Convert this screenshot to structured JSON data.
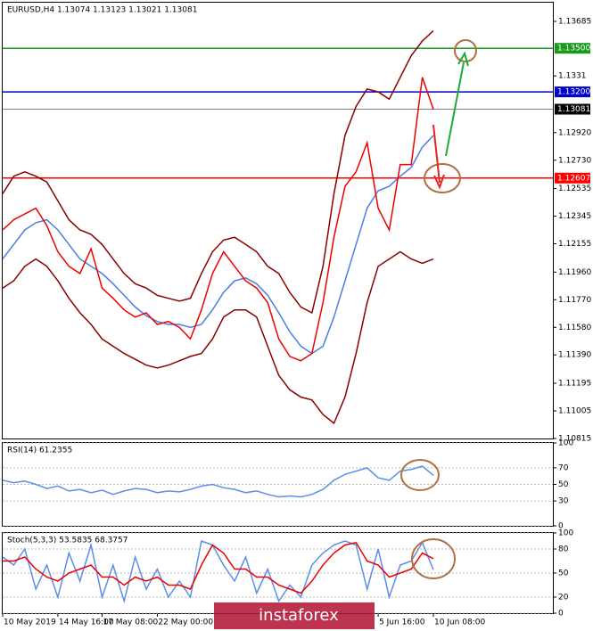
{
  "chart_data": [
    {
      "type": "line",
      "title": "EURUSD,H4  1.13074 1.13123 1.13021 1.13081",
      "watermark": "instaforex",
      "ylim": [
        1.10815,
        1.13814
      ],
      "yticks": [
        1.13685,
        1.1331,
        {
          "value": 1.1292,
          "label": "1.12920"
        },
        {
          "value": 1.1273,
          "label": "1.12730"
        },
        1.12535,
        1.12345,
        1.12155,
        {
          "value": 1.1196,
          "label": "1.11960"
        },
        {
          "value": 1.1177,
          "label": "1.11770"
        },
        {
          "value": 1.1158,
          "label": "1.11580"
        },
        {
          "value": 1.1139,
          "label": "1.11390"
        },
        1.11195,
        1.11005,
        1.10815
      ],
      "levels": [
        {
          "value": 1.135,
          "label": "1.13500",
          "color": "#1a9a1a"
        },
        {
          "value": 1.132,
          "label": "1.13200",
          "color": "#0000cc"
        },
        {
          "value": 1.13081,
          "label": "1.13081",
          "color": "#000000"
        },
        {
          "value": 1.12607,
          "label": "1.12607",
          "color": "#ff0000"
        }
      ],
      "categories": [
        "10 May 2019",
        null,
        null,
        null,
        null,
        "14 May 16:00",
        null,
        null,
        null,
        "17 May 08:00",
        null,
        null,
        null,
        null,
        "22 May 00:00",
        null,
        null,
        null,
        null,
        null,
        null,
        null,
        null,
        null,
        null,
        null,
        null,
        null,
        null,
        null,
        null,
        null,
        null,
        null,
        "5 Jun 16:00",
        null,
        null,
        null,
        null,
        "10 Jun 08:00"
      ],
      "series": [
        {
          "color": "#8b0000",
          "values": [
            1.125,
            1.1262,
            1.1265,
            1.1262,
            1.1258,
            1.1245,
            1.1232,
            1.1225,
            1.1222,
            1.1215,
            1.1205,
            1.1195,
            1.1188,
            1.1185,
            1.118,
            1.1178,
            1.1176,
            1.1178,
            1.1195,
            1.121,
            1.1218,
            1.122,
            1.1215,
            1.121,
            1.12,
            1.1195,
            1.1182,
            1.1172,
            1.1168,
            1.12,
            1.125,
            1.129,
            1.131,
            1.1322,
            1.132,
            1.1315,
            1.133,
            1.1345,
            1.1355,
            1.1362
          ]
        },
        {
          "color": "#8b0000",
          "values": [
            1.1185,
            1.119,
            1.12,
            1.1205,
            1.12,
            1.119,
            1.1178,
            1.1168,
            1.116,
            1.115,
            1.1145,
            1.114,
            1.1136,
            1.1132,
            1.113,
            1.1132,
            1.1135,
            1.1138,
            1.114,
            1.115,
            1.1165,
            1.117,
            1.117,
            1.1165,
            1.1145,
            1.1125,
            1.1115,
            1.111,
            1.1108,
            1.1098,
            1.1092,
            1.111,
            1.114,
            1.1175,
            1.12,
            1.1205,
            1.121,
            1.1205,
            1.1202,
            1.1205
          ]
        },
        {
          "color": "#4a7fe0",
          "values": [
            1.1205,
            1.1215,
            1.1225,
            1.123,
            1.1232,
            1.1225,
            1.1215,
            1.1205,
            1.12,
            1.1195,
            1.1188,
            1.118,
            1.1172,
            1.1166,
            1.1162,
            1.116,
            1.116,
            1.1158,
            1.116,
            1.117,
            1.1182,
            1.119,
            1.1192,
            1.1188,
            1.118,
            1.1168,
            1.1155,
            1.1145,
            1.114,
            1.1145,
            1.1165,
            1.119,
            1.1215,
            1.124,
            1.1252,
            1.1255,
            1.1262,
            1.1268,
            1.1282,
            1.129
          ]
        },
        {
          "color": "#ee0000",
          "values": [
            1.1225,
            1.1232,
            1.1236,
            1.124,
            1.1228,
            1.121,
            1.12,
            1.1195,
            1.1212,
            1.1185,
            1.1178,
            1.117,
            1.1165,
            1.1168,
            1.116,
            1.1162,
            1.1158,
            1.115,
            1.117,
            1.1195,
            1.121,
            1.12,
            1.119,
            1.1185,
            1.1175,
            1.115,
            1.1138,
            1.1135,
            1.114,
            1.1175,
            1.122,
            1.1255,
            1.1265,
            1.1285,
            1.124,
            1.1225,
            1.127,
            1.127,
            1.133,
            1.1308
          ]
        }
      ]
    },
    {
      "type": "line",
      "title": "RSI(14) 61.2355",
      "ylim": [
        0,
        100
      ],
      "yticks": [
        100,
        70,
        50,
        30,
        0
      ],
      "series": [
        {
          "color": "#5b8fe8",
          "values": [
            55,
            52,
            54,
            50,
            45,
            48,
            42,
            44,
            40,
            43,
            38,
            42,
            45,
            44,
            40,
            42,
            41,
            44,
            48,
            50,
            46,
            44,
            40,
            42,
            38,
            35,
            36,
            35,
            38,
            44,
            55,
            62,
            66,
            70,
            58,
            55,
            66,
            68,
            72,
            61
          ]
        }
      ]
    },
    {
      "type": "line",
      "title": "Stoch(5,3,3) 53.5835 68.3757",
      "ylim": [
        0,
        100
      ],
      "yticks": [
        100,
        80,
        50,
        20,
        0
      ],
      "series": [
        {
          "color": "#5b8fe8",
          "values": [
            70,
            60,
            80,
            30,
            60,
            20,
            75,
            40,
            85,
            20,
            60,
            15,
            70,
            30,
            55,
            20,
            40,
            20,
            90,
            85,
            60,
            40,
            70,
            25,
            55,
            15,
            35,
            20,
            60,
            75,
            85,
            90,
            85,
            30,
            80,
            20,
            60,
            65,
            88,
            54
          ]
        },
        {
          "color": "#ee0000",
          "values": [
            65,
            65,
            70,
            55,
            45,
            40,
            50,
            55,
            60,
            45,
            45,
            35,
            45,
            40,
            45,
            35,
            35,
            30,
            60,
            85,
            75,
            55,
            55,
            45,
            45,
            35,
            30,
            25,
            40,
            60,
            75,
            85,
            88,
            65,
            60,
            45,
            50,
            55,
            75,
            68
          ]
        }
      ]
    }
  ]
}
